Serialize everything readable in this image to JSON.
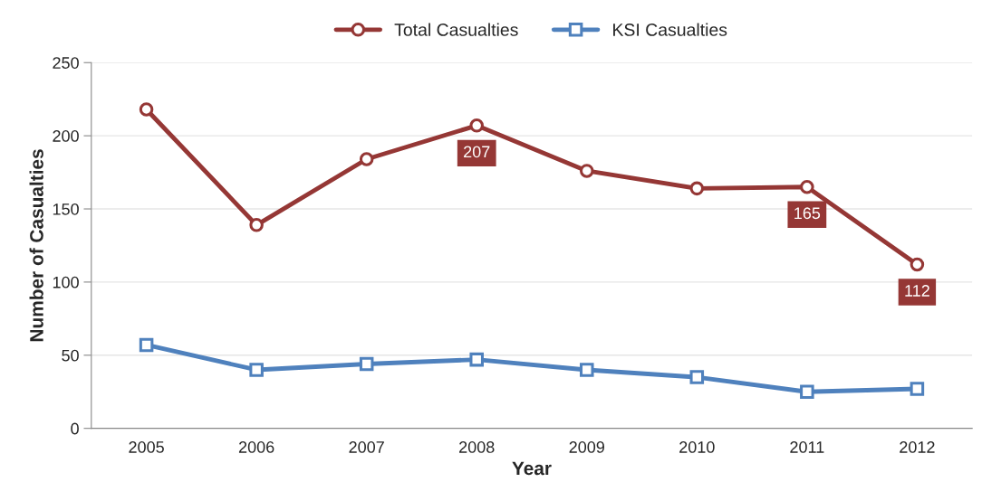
{
  "chart_data": {
    "type": "line",
    "xlabel": "Year",
    "ylabel": "Number of Casualties",
    "categories": [
      "2005",
      "2006",
      "2007",
      "2008",
      "2009",
      "2010",
      "2011",
      "2012"
    ],
    "series": [
      {
        "name": "Total Casualties",
        "color": "#953735",
        "values": [
          218,
          139,
          184,
          207,
          176,
          164,
          165,
          112
        ],
        "marker": "circle",
        "value_labels": [
          null,
          null,
          null,
          "207",
          null,
          null,
          "165",
          "112"
        ]
      },
      {
        "name": "KSI Casualties",
        "color": "#4f81bd",
        "values": [
          57,
          40,
          44,
          47,
          40,
          35,
          25,
          27
        ],
        "marker": "square"
      }
    ],
    "ylim": [
      0,
      250
    ],
    "yticks": [
      0,
      50,
      100,
      150,
      200,
      250
    ],
    "grid": "y",
    "legend": "top",
    "line_style": "solid"
  }
}
